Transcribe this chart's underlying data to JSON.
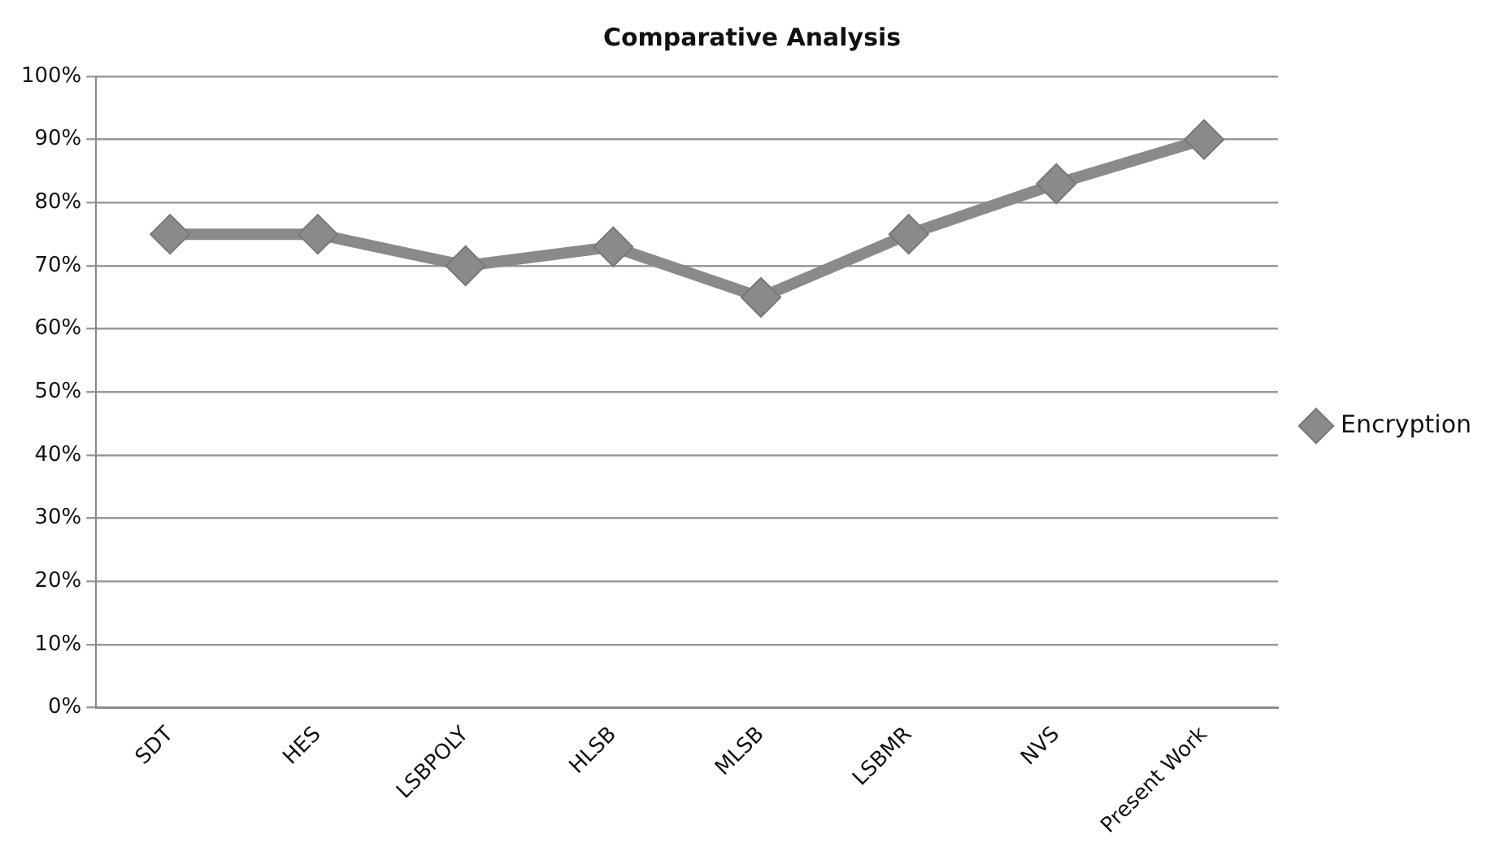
{
  "chart_data": {
    "type": "line",
    "title": "Comparative Analysis",
    "categories": [
      "SDT",
      "HES",
      "LSBPOLY",
      "HLSB",
      "MLSB",
      "LSBMR",
      "NVS",
      "Present Work"
    ],
    "series": [
      {
        "name": "Encryption",
        "color": "#8a8a8a",
        "values": [
          75,
          75,
          70,
          73,
          65,
          75,
          83,
          90
        ]
      }
    ],
    "ylim": [
      0,
      100
    ],
    "yticks": [
      {
        "value": 0,
        "label": "0%"
      },
      {
        "value": 10,
        "label": "10%"
      },
      {
        "value": 20,
        "label": "20%"
      },
      {
        "value": 30,
        "label": "30%"
      },
      {
        "value": 40,
        "label": "40%"
      },
      {
        "value": 50,
        "label": "50%"
      },
      {
        "value": 60,
        "label": "60%"
      },
      {
        "value": 70,
        "label": "70%"
      },
      {
        "value": 80,
        "label": "80%"
      },
      {
        "value": 90,
        "label": "90%"
      },
      {
        "value": 100,
        "label": "100%"
      }
    ],
    "grid": "y",
    "legend": "right",
    "marker": "diamond",
    "line_style": "solid"
  }
}
